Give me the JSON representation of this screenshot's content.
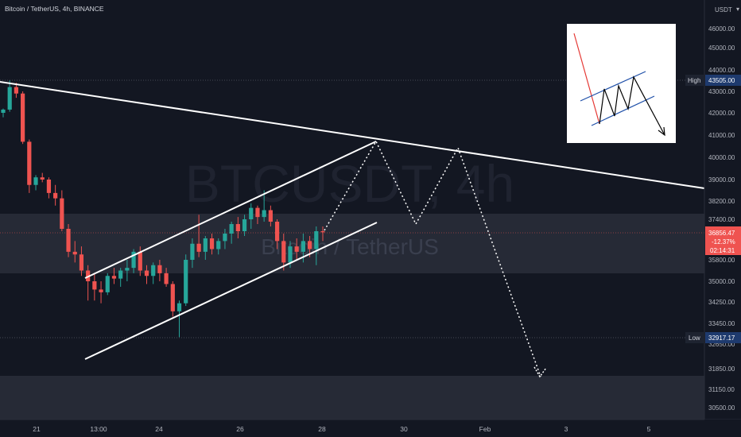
{
  "header": {
    "symbol_line": "Bitcoin / TetherUS, 4h, BINANCE",
    "currency": "USDT"
  },
  "watermark": {
    "big": "BTCUSDT, 4h",
    "small": "Bitcoin / TetherUS"
  },
  "markers": {
    "high_label": "High",
    "high_value": "43505.00",
    "low_label": "Low",
    "low_value": "32917.17",
    "last_price": "36856.47",
    "change": "-12.37%",
    "countdown": "02:14:31"
  },
  "colors": {
    "background": "#131722",
    "up": "#26a69a",
    "down": "#ef5350",
    "zone": "#2a2e39",
    "line": "#ffffff",
    "label_bg": "#1e3a6e",
    "price_label_bg": "#ef5350"
  },
  "chart_data": {
    "type": "candlestick",
    "price_ticks": [
      "46000.00",
      "45000.00",
      "44000.00",
      "43000.00",
      "42000.00",
      "41000.00",
      "40000.00",
      "39000.00",
      "38200.00",
      "37400.00",
      "36600.00",
      "35800.00",
      "35000.00",
      "34250.00",
      "33450.00",
      "32650.00",
      "31850.00",
      "31150.00",
      "30500.00"
    ],
    "time_ticks": [
      "21",
      "13:00",
      "24",
      "26",
      "28",
      "30",
      "Feb",
      "3",
      "5"
    ],
    "candles": [
      [
        42000,
        42200,
        41800,
        42150
      ],
      [
        42150,
        43505,
        42050,
        43200
      ],
      [
        43200,
        43400,
        42700,
        42900
      ],
      [
        42900,
        43000,
        40600,
        40700
      ],
      [
        40700,
        40800,
        38500,
        38800
      ],
      [
        38800,
        39200,
        38600,
        39100
      ],
      [
        39100,
        39300,
        38900,
        39000
      ],
      [
        39000,
        39100,
        38300,
        38500
      ],
      [
        38500,
        38800,
        38000,
        38300
      ],
      [
        38300,
        38600,
        36900,
        37000
      ],
      [
        37000,
        37200,
        35900,
        36100
      ],
      [
        36100,
        36500,
        35700,
        36000
      ],
      [
        36000,
        36300,
        35200,
        35400
      ],
      [
        35400,
        35600,
        34300,
        35000
      ],
      [
        35000,
        35300,
        34300,
        34700
      ],
      [
        34700,
        35000,
        34200,
        34600
      ],
      [
        34600,
        35300,
        34500,
        35200
      ],
      [
        35200,
        35500,
        34900,
        35100
      ],
      [
        35100,
        35500,
        34800,
        35400
      ],
      [
        35400,
        35800,
        35000,
        35500
      ],
      [
        35500,
        36200,
        35300,
        36100
      ],
      [
        36100,
        36300,
        35200,
        35400
      ],
      [
        35400,
        35600,
        34900,
        35200
      ],
      [
        35200,
        35700,
        34900,
        35600
      ],
      [
        35600,
        35800,
        35000,
        35300
      ],
      [
        35300,
        35500,
        34800,
        34900
      ],
      [
        34900,
        35000,
        33700,
        33900
      ],
      [
        33900,
        34300,
        32917,
        34200
      ],
      [
        34200,
        36000,
        34100,
        35800
      ],
      [
        35800,
        36600,
        35500,
        36400
      ],
      [
        36400,
        37600,
        35900,
        36100
      ],
      [
        36100,
        36700,
        35800,
        36600
      ],
      [
        36600,
        36800,
        36000,
        36200
      ],
      [
        36200,
        36600,
        36000,
        36500
      ],
      [
        36500,
        37000,
        36200,
        36800
      ],
      [
        36800,
        37300,
        36400,
        37200
      ],
      [
        37200,
        37500,
        36600,
        36900
      ],
      [
        36900,
        37600,
        36700,
        37400
      ],
      [
        37400,
        38100,
        37000,
        37900
      ],
      [
        37900,
        38000,
        37200,
        37500
      ],
      [
        37500,
        38600,
        37300,
        37800
      ],
      [
        37800,
        38000,
        37100,
        37300
      ],
      [
        37300,
        37400,
        36200,
        36500
      ],
      [
        36500,
        36800,
        35400,
        35700
      ],
      [
        35700,
        36500,
        35500,
        36300
      ],
      [
        36300,
        36600,
        35800,
        36100
      ],
      [
        36100,
        36800,
        35700,
        36500
      ],
      [
        36500,
        36700,
        35900,
        36200
      ],
      [
        36200,
        37100,
        35600,
        36900
      ],
      [
        36900,
        37100,
        36500,
        36856
      ]
    ],
    "high": 43505.0,
    "low": 32917.17,
    "last": 36856.47
  }
}
